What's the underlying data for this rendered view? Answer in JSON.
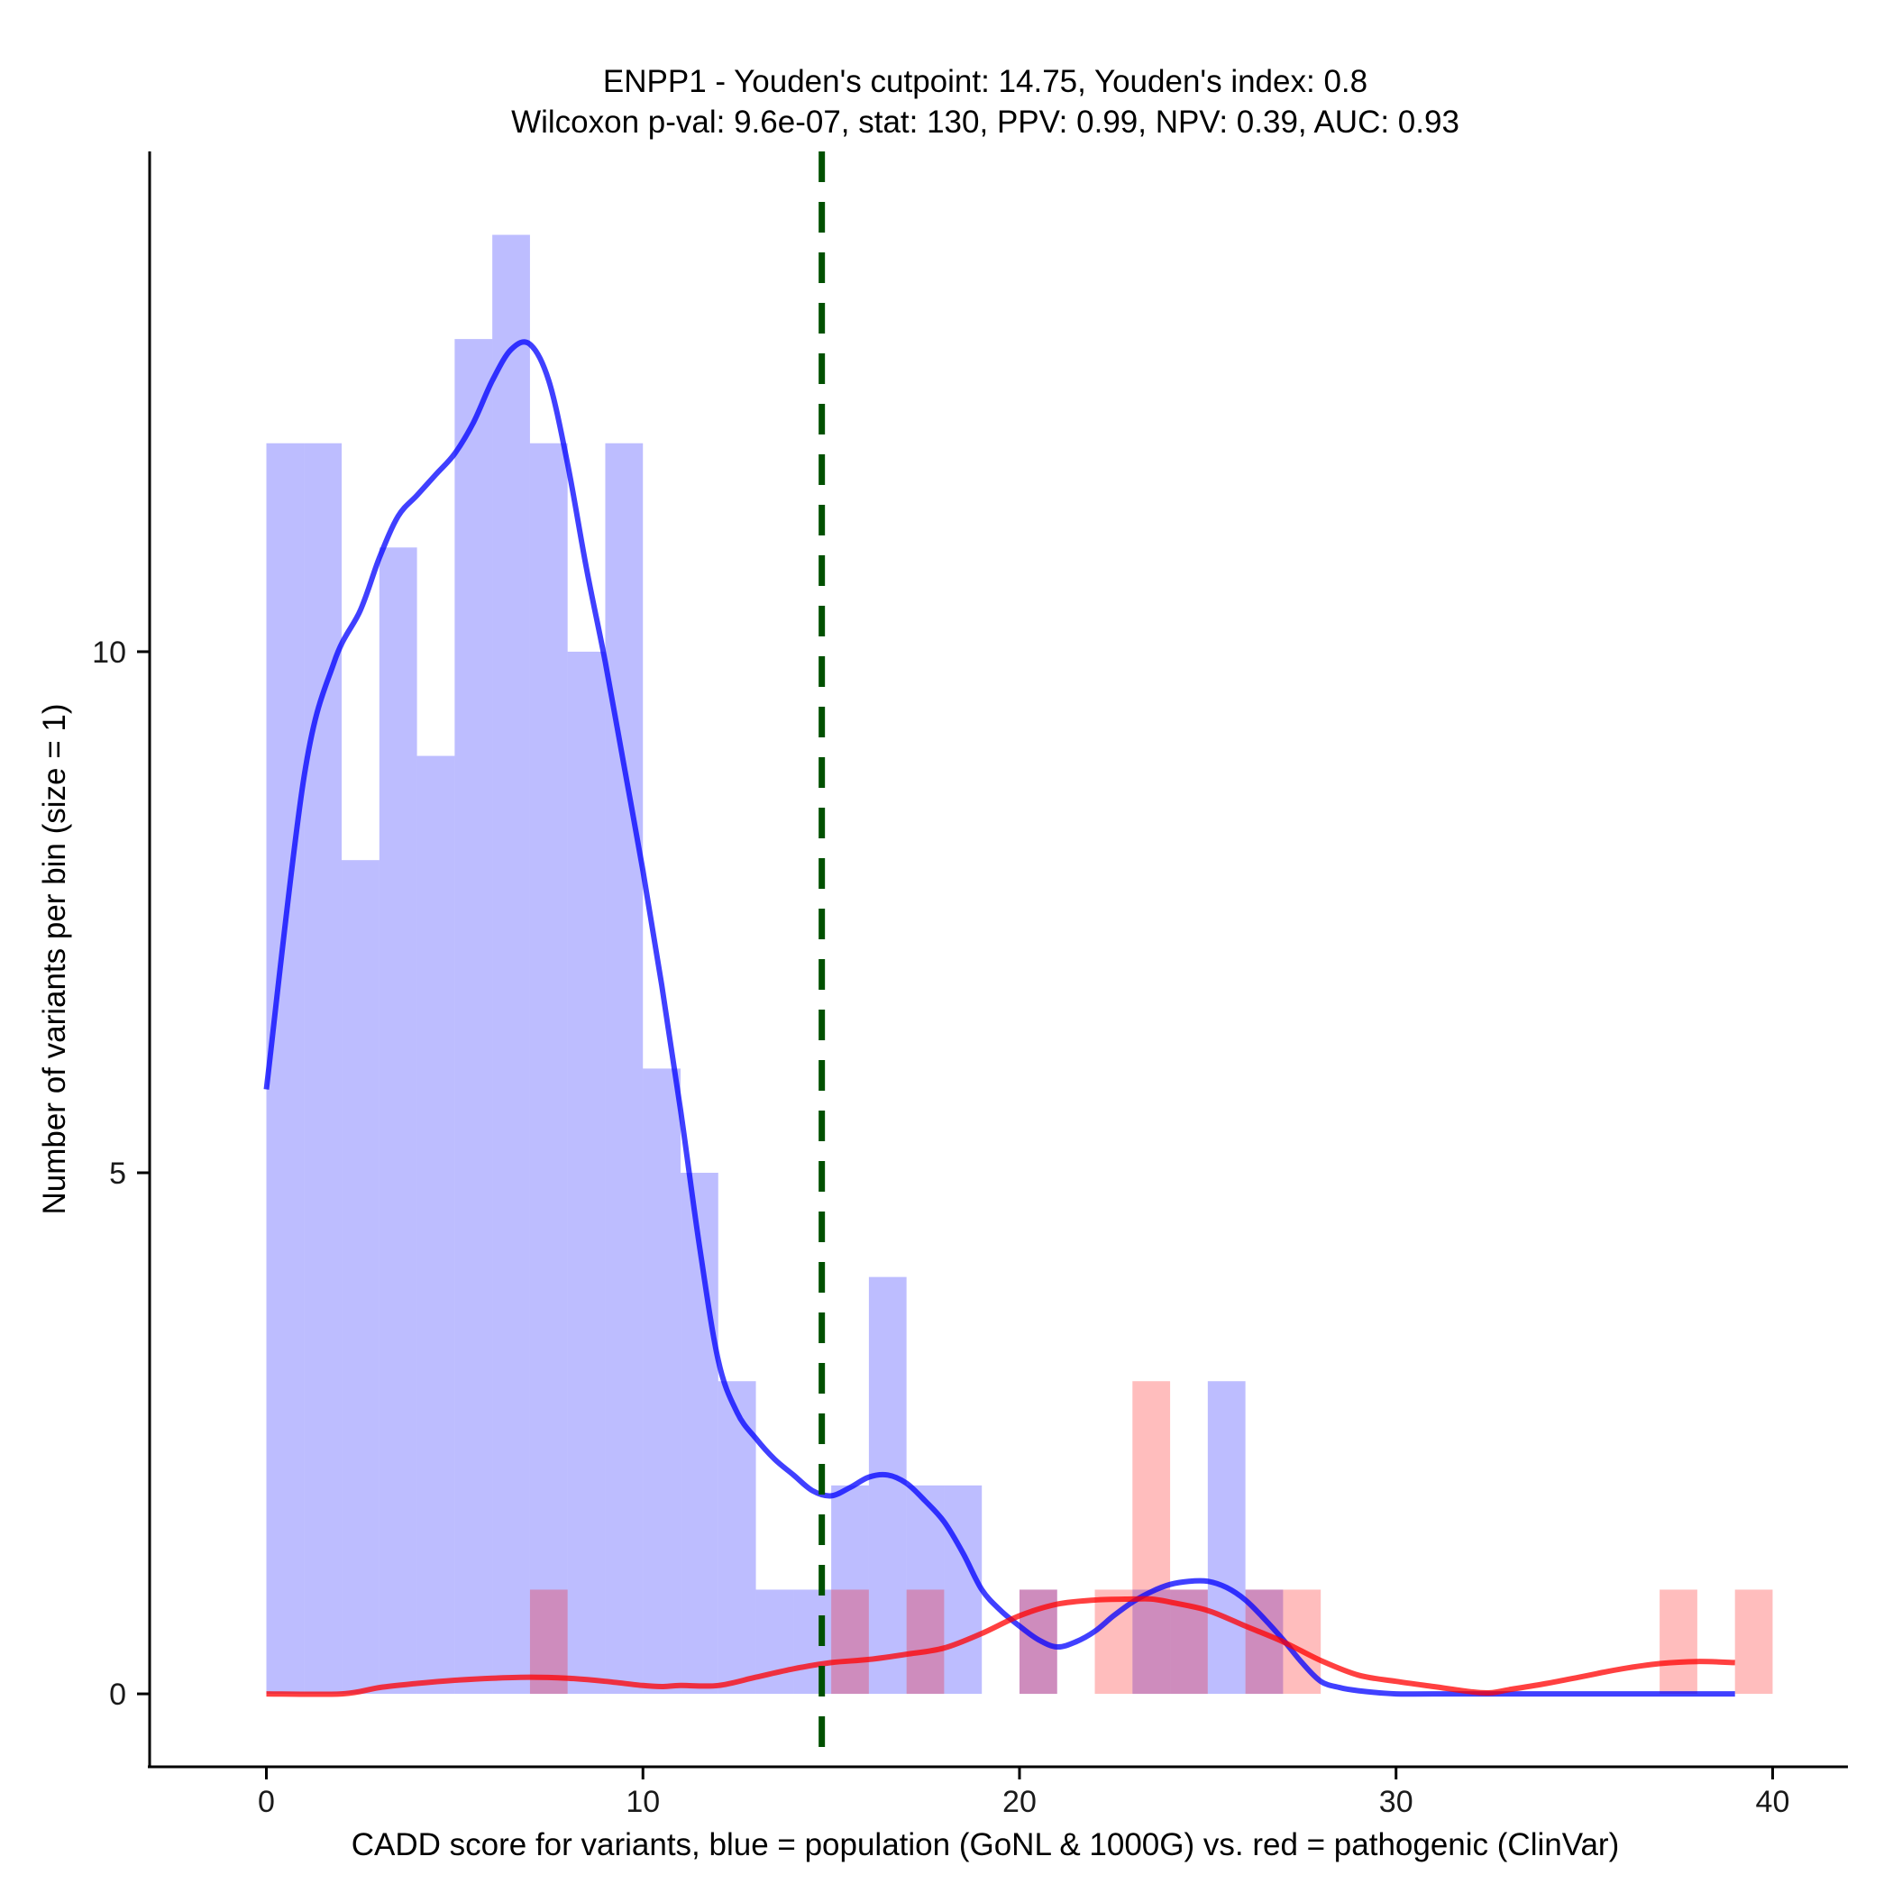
{
  "chart_data": {
    "type": "histogram-density",
    "title": "ENPP1 - Youden's cutpoint: 14.75, Youden's index: 0.8",
    "subtitle": "Wilcoxon p-val: 9.6e-07, stat: 130, PPV: 0.99, NPV: 0.39, AUC: 0.93",
    "xlabel": "CADD score for variants, blue = population (GoNL & 1000G) vs. red = pathogenic (ClinVar)",
    "ylabel": "Number of variants per bin (size = 1)",
    "xlim": [
      -3.1,
      42
    ],
    "ylim": [
      -0.7,
      14.8
    ],
    "x_ticks": [
      0,
      10,
      20,
      30,
      40
    ],
    "y_ticks": [
      0,
      5,
      10
    ],
    "bin_width": 1,
    "cutpoint": 14.75,
    "colors": {
      "population": "#0000ff",
      "pathogenic": "#ff0000",
      "cutpoint": "#005000"
    },
    "series": [
      {
        "name": "population (GoNL & 1000G)",
        "color": "#0000ff",
        "bins": [
          {
            "x0": 0,
            "x1": 1,
            "count": 12
          },
          {
            "x0": 1,
            "x1": 2,
            "count": 12
          },
          {
            "x0": 2,
            "x1": 3,
            "count": 8
          },
          {
            "x0": 3,
            "x1": 4,
            "count": 11
          },
          {
            "x0": 4,
            "x1": 5,
            "count": 9
          },
          {
            "x0": 5,
            "x1": 6,
            "count": 13
          },
          {
            "x0": 6,
            "x1": 7,
            "count": 14
          },
          {
            "x0": 7,
            "x1": 8,
            "count": 12
          },
          {
            "x0": 8,
            "x1": 9,
            "count": 10
          },
          {
            "x0": 9,
            "x1": 10,
            "count": 12
          },
          {
            "x0": 10,
            "x1": 11,
            "count": 6
          },
          {
            "x0": 11,
            "x1": 12,
            "count": 5
          },
          {
            "x0": 12,
            "x1": 13,
            "count": 3
          },
          {
            "x0": 13,
            "x1": 14,
            "count": 1
          },
          {
            "x0": 14,
            "x1": 15,
            "count": 1
          },
          {
            "x0": 15,
            "x1": 16,
            "count": 2
          },
          {
            "x0": 16,
            "x1": 17,
            "count": 4
          },
          {
            "x0": 17,
            "x1": 18,
            "count": 2
          },
          {
            "x0": 18,
            "x1": 19,
            "count": 2
          },
          {
            "x0": 20,
            "x1": 21,
            "count": 1
          },
          {
            "x0": 23,
            "x1": 24,
            "count": 1
          },
          {
            "x0": 24,
            "x1": 25,
            "count": 1
          },
          {
            "x0": 25,
            "x1": 26,
            "count": 3
          },
          {
            "x0": 26,
            "x1": 27,
            "count": 1
          }
        ],
        "density": [
          [
            0,
            5.8
          ],
          [
            1,
            8.8
          ],
          [
            1.8,
            9.9
          ],
          [
            2.5,
            10.4
          ],
          [
            3,
            10.9
          ],
          [
            3.5,
            11.3
          ],
          [
            4,
            11.5
          ],
          [
            4.5,
            11.7
          ],
          [
            5,
            11.9
          ],
          [
            5.5,
            12.2
          ],
          [
            6,
            12.6
          ],
          [
            6.5,
            12.9
          ],
          [
            7,
            12.95
          ],
          [
            7.5,
            12.6
          ],
          [
            8,
            11.8
          ],
          [
            8.5,
            10.8
          ],
          [
            9,
            9.9
          ],
          [
            9.5,
            8.9
          ],
          [
            10,
            7.9
          ],
          [
            10.5,
            6.8
          ],
          [
            11,
            5.6
          ],
          [
            11.5,
            4.3
          ],
          [
            12,
            3.2
          ],
          [
            12.5,
            2.7
          ],
          [
            13,
            2.45
          ],
          [
            13.5,
            2.25
          ],
          [
            14,
            2.1
          ],
          [
            14.5,
            1.95
          ],
          [
            15,
            1.9
          ],
          [
            15.5,
            1.98
          ],
          [
            16,
            2.08
          ],
          [
            16.5,
            2.1
          ],
          [
            17,
            2.02
          ],
          [
            17.5,
            1.85
          ],
          [
            18,
            1.65
          ],
          [
            18.5,
            1.35
          ],
          [
            19,
            1.0
          ],
          [
            19.5,
            0.8
          ],
          [
            20,
            0.65
          ],
          [
            20.5,
            0.52
          ],
          [
            21,
            0.45
          ],
          [
            21.5,
            0.5
          ],
          [
            22,
            0.6
          ],
          [
            22.5,
            0.75
          ],
          [
            23,
            0.88
          ],
          [
            23.5,
            0.98
          ],
          [
            24,
            1.05
          ],
          [
            24.5,
            1.08
          ],
          [
            25,
            1.08
          ],
          [
            25.5,
            1.02
          ],
          [
            26,
            0.9
          ],
          [
            26.5,
            0.72
          ],
          [
            27,
            0.52
          ],
          [
            27.5,
            0.3
          ],
          [
            28,
            0.12
          ],
          [
            28.5,
            0.06
          ],
          [
            29,
            0.03
          ],
          [
            30,
            0
          ],
          [
            31,
            0
          ],
          [
            35,
            0
          ],
          [
            39,
            0
          ]
        ]
      },
      {
        "name": "pathogenic (ClinVar)",
        "color": "#ff0000",
        "bins": [
          {
            "x0": 7,
            "x1": 8,
            "count": 1
          },
          {
            "x0": 15,
            "x1": 16,
            "count": 1
          },
          {
            "x0": 17,
            "x1": 18,
            "count": 1
          },
          {
            "x0": 20,
            "x1": 21,
            "count": 1
          },
          {
            "x0": 22,
            "x1": 23,
            "count": 1
          },
          {
            "x0": 23,
            "x1": 24,
            "count": 3
          },
          {
            "x0": 24,
            "x1": 25,
            "count": 1
          },
          {
            "x0": 26,
            "x1": 27,
            "count": 1
          },
          {
            "x0": 27,
            "x1": 28,
            "count": 1
          },
          {
            "x0": 37,
            "x1": 38,
            "count": 1
          },
          {
            "x0": 39,
            "x1": 40,
            "count": 1
          }
        ],
        "density": [
          [
            0,
            0
          ],
          [
            2,
            0
          ],
          [
            3,
            0.06
          ],
          [
            4,
            0.1
          ],
          [
            5,
            0.13
          ],
          [
            6,
            0.15
          ],
          [
            7,
            0.16
          ],
          [
            8,
            0.15
          ],
          [
            9,
            0.12
          ],
          [
            10,
            0.08
          ],
          [
            10.5,
            0.07
          ],
          [
            11,
            0.08
          ],
          [
            12,
            0.08
          ],
          [
            13,
            0.16
          ],
          [
            14,
            0.24
          ],
          [
            15,
            0.3
          ],
          [
            16,
            0.33
          ],
          [
            17,
            0.38
          ],
          [
            18,
            0.44
          ],
          [
            19,
            0.58
          ],
          [
            20,
            0.75
          ],
          [
            21,
            0.86
          ],
          [
            22,
            0.9
          ],
          [
            23,
            0.91
          ],
          [
            23.5,
            0.91
          ],
          [
            24,
            0.88
          ],
          [
            25,
            0.8
          ],
          [
            26,
            0.65
          ],
          [
            27,
            0.5
          ],
          [
            28,
            0.32
          ],
          [
            29,
            0.18
          ],
          [
            30,
            0.12
          ],
          [
            31,
            0.07
          ],
          [
            32,
            0.02
          ],
          [
            32.5,
            0.01
          ],
          [
            33,
            0.04
          ],
          [
            34,
            0.1
          ],
          [
            35,
            0.17
          ],
          [
            36,
            0.24
          ],
          [
            37,
            0.29
          ],
          [
            38,
            0.31
          ],
          [
            39,
            0.3
          ]
        ]
      }
    ]
  }
}
